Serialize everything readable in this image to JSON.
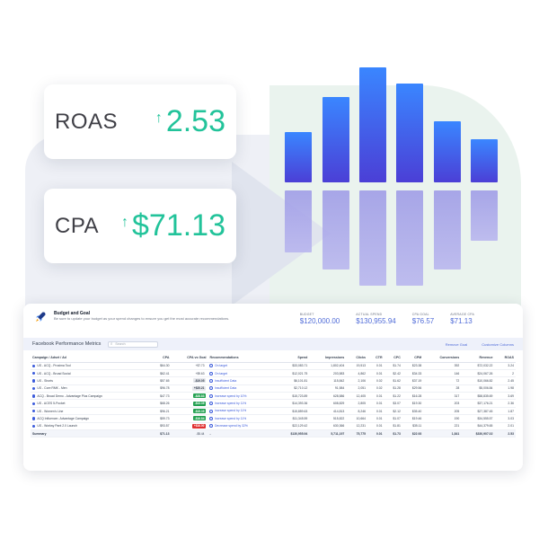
{
  "metrics": {
    "roas": {
      "label": "ROAS",
      "value": "2.53"
    },
    "cpa": {
      "label": "CPA",
      "value": "$71.13"
    }
  },
  "bar_chart": {
    "top_levels": [
      0.37,
      0.63,
      0.85,
      0.73,
      0.45,
      0.32
    ],
    "bottom_levels": [
      0.55,
      0.7,
      0.85,
      0.85,
      0.7,
      0.45
    ]
  },
  "dashboard": {
    "budget_title": "Budget and Goal",
    "budget_subtitle": "Be sure to update your budget as your spend changes to ensure you get the most accurate recommendations.",
    "kpis": [
      {
        "label": "BUDGET",
        "value": "$120,000.00"
      },
      {
        "label": "ACTUAL SPEND",
        "value": "$130,955.94"
      },
      {
        "label": "CPA GOAL",
        "value": "$76.57"
      },
      {
        "label": "AVERAGE CPA",
        "value": "$71.13"
      }
    ],
    "toolbar_title": "Facebook Performance Metrics",
    "search_placeholder": "Search",
    "remove_goal": "Remove Goal",
    "customize_columns": "Customize Columns",
    "columns": [
      "Campaign / Adset / Ad",
      "CPA",
      "CPA vs Goal",
      "Recommendations",
      "Spend",
      "Impressions",
      "Clicks",
      "CTR",
      "CPC",
      "CPM",
      "Conversions",
      "Revenue",
      "ROAS"
    ],
    "rows": [
      [
        "US - ACQ - Prosima Tool",
        "$64.30",
        "+$7.73",
        "On target",
        "$33,083.71",
        "1,802,404",
        "19,513",
        "0.01",
        "$1.74",
        "$23.38",
        "392",
        "$72,032.22",
        "3.24"
      ],
      [
        "US - ACQ - Broad Social",
        "$62.41",
        "+$9.63",
        "On target",
        "$12,021.75",
        "203,583",
        "4,862",
        "0.01",
        "$2.42",
        "$34.33",
        "146",
        "$24,067.26",
        "2"
      ],
      [
        "US - Shorts",
        "$57.65",
        "-$19.05",
        "Insufficient Data",
        "$6,101.81",
        "115,842",
        "2,106",
        "0.02",
        "$1.62",
        "$37.19",
        "72",
        "$10,066.82",
        "2.45"
      ],
      [
        "US - Core RMK - Men",
        "$96.78",
        "+$20.21",
        "Insufficient Data",
        "$2,710.12",
        "91,584",
        "2,051",
        "0.02",
        "$1.28",
        "$29.56",
        "28",
        "$5,006.84",
        "1.98"
      ],
      [
        "ACQ - Broad Demo - Advantage Plus Campaign",
        "$47.73",
        "-$28.83",
        "Increase spend by 10%",
        "$15,723.89",
        "628,586",
        "12,405",
        "0.01",
        "$1.22",
        "$16.28",
        "317",
        "$58,835.69",
        "3.69"
      ],
      [
        "US - ACES 5-Pocket",
        "$68.26",
        "-$13.39",
        "Increase spend by 11%",
        "$14,393.36",
        "608,829",
        "2,805",
        "0.01",
        "$3.07",
        "$19.30",
        "203",
        "$37,176.21",
        "2.36"
      ],
      [
        "US - Women's Line",
        "$96.21",
        "-$15.39",
        "Increase spend by 11%",
        "$15,859.63",
        "414,813",
        "8,246",
        "0.01",
        "$2.12",
        "$35.40",
        "205",
        "$27,387.45",
        "1.87"
      ],
      [
        "ACQ Influencer- Advantage Campaign",
        "$59.73",
        "-$16.84",
        "Increase spend by 11%",
        "$11,345.59",
        "515,822",
        "10,664",
        "0.01",
        "$1.07",
        "$19.46",
        "190",
        "$34,555.57",
        "3.03"
      ],
      [
        "US - Worksy Pant 2.0 Launch",
        "$93.57",
        "+$16.00",
        "Decrease spend by 32%",
        "$22,129.42",
        "630,366",
        "12,231",
        "0.01",
        "$1.81",
        "$35.11",
        "221",
        "$44,379.65",
        "2.01"
      ]
    ],
    "goal_style": [
      "plain",
      "plain",
      "neutral",
      "neutral",
      "neg",
      "neg",
      "neg",
      "neg",
      "pos"
    ],
    "summary": [
      "Summary",
      "$71.13",
      "-$5.44",
      "-",
      "$130,955.94",
      "5,711,197",
      "75,775",
      "0.01",
      "$1.73",
      "$22.93",
      "1,841",
      "$330,907.02",
      "2.53"
    ]
  }
}
